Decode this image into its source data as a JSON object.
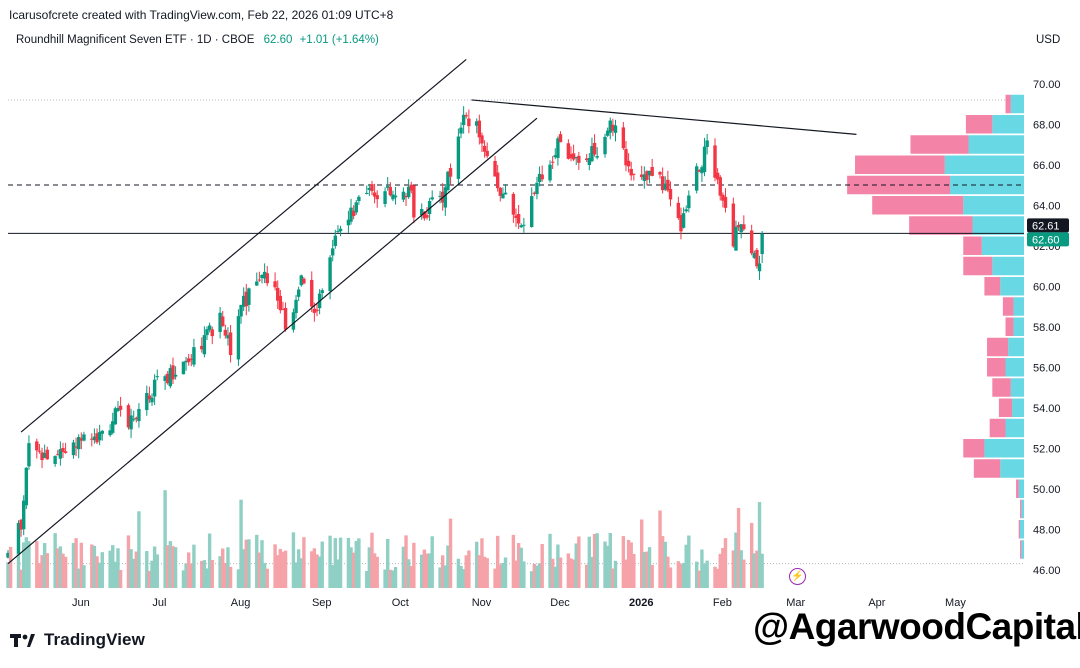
{
  "header": {
    "created_by": "Icarusofcrete created with TradingView.com, Feb 22, 2026 01:09 UTC+8",
    "symbol_line": "Roundhill Magnificent Seven ETF · 1D · CBOE",
    "last_price": "62.60",
    "change": "+1.01 (+1.64%)",
    "currency": "USD"
  },
  "price_scale": {
    "labels": [
      "70.00",
      "68.00",
      "66.00",
      "64.00",
      "62.00",
      "60.00",
      "58.00",
      "56.00",
      "54.00",
      "52.00",
      "50.00",
      "48.00",
      "46.00"
    ],
    "tag_upper": "62.61",
    "tag_lower": "62.60"
  },
  "time_axis": {
    "labels": [
      "Jun",
      "Jul",
      "Aug",
      "Sep",
      "Oct",
      "Nov",
      "Dec",
      "2026",
      "Feb",
      "Mar",
      "Apr",
      "May"
    ]
  },
  "brand": {
    "name": "TradingView"
  },
  "watermark": {
    "text": "@AgarwoodCapital"
  },
  "colors": {
    "up": "#089981",
    "down": "#f23645",
    "up_volume": "#8fcfc4",
    "down_volume": "#f5a3a8",
    "profile_up": "#5fd6e3",
    "profile_down": "#f26d99",
    "tag_black": "#131722",
    "tag_green": "#089981",
    "trendline": "#131722"
  },
  "chart_data": {
    "type": "candlestick",
    "symbol": "Roundhill Magnificent Seven ETF",
    "interval": "1D",
    "exchange": "CBOE",
    "x_range": [
      "2025-05-08",
      "2026-05-31"
    ],
    "y_range": [
      45,
      70.5
    ],
    "grid": false,
    "horizontal_levels": [
      {
        "price": 65.0,
        "style": "dashed"
      },
      {
        "price": 62.61,
        "style": "solid"
      }
    ],
    "anchors": [
      {
        "date": "2025-05-08",
        "close": 46.7
      },
      {
        "date": "2025-05-13",
        "close": 48.2
      },
      {
        "date": "2025-05-16",
        "close": 52.0
      },
      {
        "date": "2025-05-22",
        "close": 51.6
      },
      {
        "date": "2025-05-29",
        "close": 51.5
      },
      {
        "date": "2025-06-06",
        "close": 53.0
      },
      {
        "date": "2025-06-12",
        "close": 52.5
      },
      {
        "date": "2025-06-18",
        "close": 53.6
      },
      {
        "date": "2025-06-24",
        "close": 53.4
      },
      {
        "date": "2025-07-01",
        "close": 54.8
      },
      {
        "date": "2025-07-07",
        "close": 55.5
      },
      {
        "date": "2025-07-14",
        "close": 56.3
      },
      {
        "date": "2025-07-21",
        "close": 57.3
      },
      {
        "date": "2025-07-28",
        "close": 58.3
      },
      {
        "date": "2025-08-01",
        "close": 56.8
      },
      {
        "date": "2025-08-06",
        "close": 59.2
      },
      {
        "date": "2025-08-12",
        "close": 60.6
      },
      {
        "date": "2025-08-18",
        "close": 60.2
      },
      {
        "date": "2025-08-22",
        "close": 58.0
      },
      {
        "date": "2025-08-28",
        "close": 60.2
      },
      {
        "date": "2025-09-02",
        "close": 58.6
      },
      {
        "date": "2025-09-08",
        "close": 61.5
      },
      {
        "date": "2025-09-12",
        "close": 63.0
      },
      {
        "date": "2025-09-19",
        "close": 64.2
      },
      {
        "date": "2025-09-25",
        "close": 64.6
      },
      {
        "date": "2025-10-02",
        "close": 64.7
      },
      {
        "date": "2025-10-09",
        "close": 64.9
      },
      {
        "date": "2025-10-10",
        "close": 63.3
      },
      {
        "date": "2025-10-16",
        "close": 63.8
      },
      {
        "date": "2025-10-22",
        "close": 64.7
      },
      {
        "date": "2025-10-28",
        "close": 68.1
      },
      {
        "date": "2025-11-03",
        "close": 67.9
      },
      {
        "date": "2025-11-07",
        "close": 66.2
      },
      {
        "date": "2025-11-13",
        "close": 64.6
      },
      {
        "date": "2025-11-20",
        "close": 63.1
      },
      {
        "date": "2025-11-25",
        "close": 64.6
      },
      {
        "date": "2025-12-01",
        "close": 66.1
      },
      {
        "date": "2025-12-05",
        "close": 67.2
      },
      {
        "date": "2025-12-12",
        "close": 65.9
      },
      {
        "date": "2025-12-18",
        "close": 66.6
      },
      {
        "date": "2025-12-24",
        "close": 68.2
      },
      {
        "date": "2025-12-31",
        "close": 65.8
      },
      {
        "date": "2026-01-07",
        "close": 65.6
      },
      {
        "date": "2026-01-14",
        "close": 65.0
      },
      {
        "date": "2026-01-20",
        "close": 63.0
      },
      {
        "date": "2026-01-26",
        "close": 65.6
      },
      {
        "date": "2026-01-30",
        "close": 66.8
      },
      {
        "date": "2026-02-04",
        "close": 64.4
      },
      {
        "date": "2026-02-09",
        "close": 62.3
      },
      {
        "date": "2026-02-13",
        "close": 63.2
      },
      {
        "date": "2026-02-17",
        "close": 61.2
      },
      {
        "date": "2026-02-19",
        "close": 61.5
      },
      {
        "date": "2026-02-20",
        "close": 62.6
      }
    ],
    "trendlines": [
      {
        "from": {
          "date": "2025-05-13",
          "price": 52.8
        },
        "to": {
          "date": "2025-10-30",
          "price": 71.2
        }
      },
      {
        "from": {
          "date": "2025-05-08",
          "price": 46.3
        },
        "to": {
          "date": "2025-11-26",
          "price": 68.3
        }
      },
      {
        "from": {
          "date": "2025-11-01",
          "price": 69.2
        },
        "to": {
          "date": "2026-03-28",
          "price": 67.5
        }
      }
    ],
    "volume_profile": [
      {
        "price": 69.0,
        "up": 1.0,
        "down": 0.4
      },
      {
        "price": 68.0,
        "up": 2.4,
        "down": 2.0
      },
      {
        "price": 67.0,
        "up": 4.2,
        "down": 4.4
      },
      {
        "price": 66.0,
        "up": 6.0,
        "down": 6.8
      },
      {
        "price": 65.0,
        "up": 5.6,
        "down": 7.8
      },
      {
        "price": 64.0,
        "up": 4.6,
        "down": 6.9
      },
      {
        "price": 63.0,
        "up": 3.9,
        "down": 4.8
      },
      {
        "price": 62.0,
        "up": 3.2,
        "down": 1.4
      },
      {
        "price": 61.0,
        "up": 2.4,
        "down": 2.2
      },
      {
        "price": 60.0,
        "up": 1.8,
        "down": 1.2
      },
      {
        "price": 59.0,
        "up": 0.8,
        "down": 0.8
      },
      {
        "price": 58.0,
        "up": 0.8,
        "down": 0.6
      },
      {
        "price": 57.0,
        "up": 1.2,
        "down": 1.6
      },
      {
        "price": 56.0,
        "up": 1.4,
        "down": 1.4
      },
      {
        "price": 55.0,
        "up": 1.0,
        "down": 1.4
      },
      {
        "price": 54.0,
        "up": 0.9,
        "down": 1.0
      },
      {
        "price": 53.0,
        "up": 1.4,
        "down": 1.2
      },
      {
        "price": 52.0,
        "up": 3.0,
        "down": 1.6
      },
      {
        "price": 51.0,
        "up": 1.8,
        "down": 2.0
      },
      {
        "price": 50.0,
        "up": 0.4,
        "down": 0.2
      },
      {
        "price": 49.0,
        "up": 0.2,
        "down": 0.1
      },
      {
        "price": 48.0,
        "up": 0.3,
        "down": 0.1
      },
      {
        "price": 47.0,
        "up": 0.2,
        "down": 0.1
      }
    ]
  }
}
